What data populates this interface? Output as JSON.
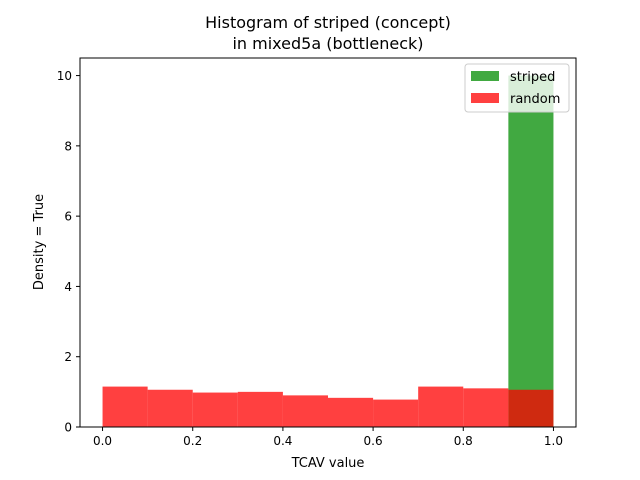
{
  "chart_data": {
    "type": "bar",
    "title_line1": "Histogram of striped (concept)",
    "title_line2": "in mixed5a (bottleneck)",
    "xlabel": "TCAV value",
    "ylabel": "Density = True",
    "xlim": [
      -0.05,
      1.05
    ],
    "ylim": [
      0,
      10.5
    ],
    "xticks": [
      "0.0",
      "0.2",
      "0.4",
      "0.6",
      "0.8",
      "1.0"
    ],
    "yticks": [
      "0",
      "2",
      "4",
      "6",
      "8",
      "10"
    ],
    "grid": false,
    "legend_position": "top-right",
    "bin_edges": [
      0.0,
      0.1,
      0.2,
      0.3,
      0.4,
      0.5,
      0.6,
      0.7,
      0.8,
      0.9,
      1.0
    ],
    "series": [
      {
        "name": "striped",
        "color": "#2ca02c",
        "alpha": 0.9,
        "values": [
          0,
          0,
          0,
          0,
          0,
          0,
          0,
          0,
          0,
          10.0
        ]
      },
      {
        "name": "random",
        "color": "#ff0000",
        "alpha": 0.75,
        "values": [
          1.15,
          1.06,
          0.98,
          1.0,
          0.9,
          0.83,
          0.78,
          1.15,
          1.1,
          1.06
        ]
      }
    ]
  }
}
